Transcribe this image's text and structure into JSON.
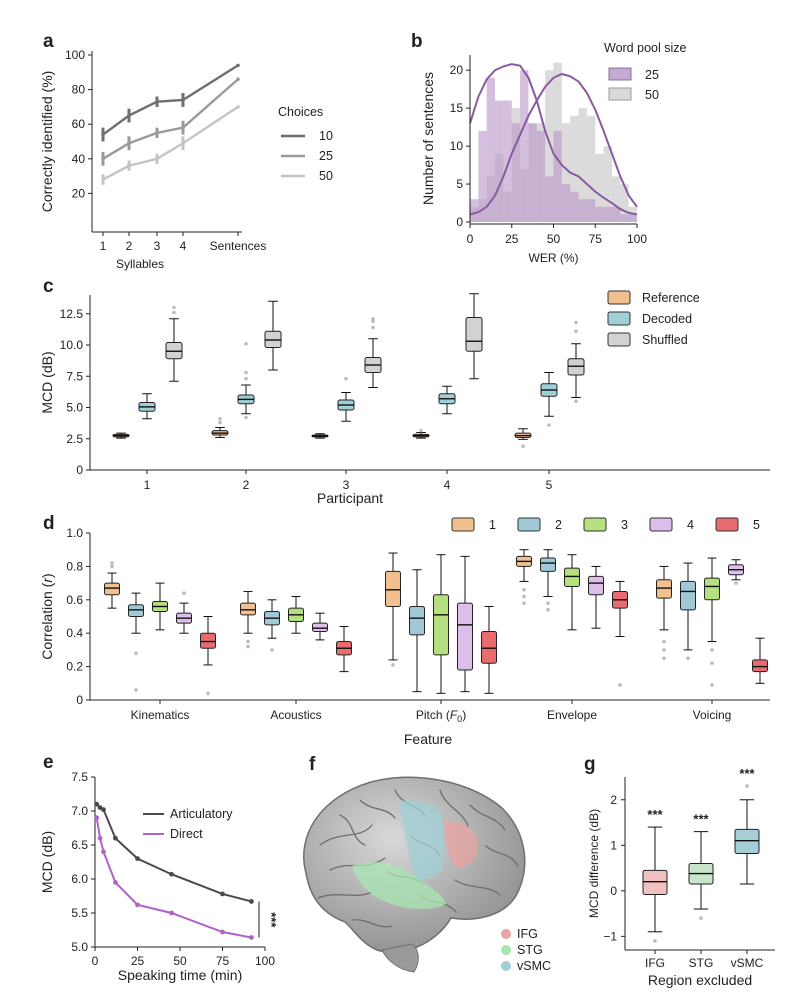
{
  "chart_data": [
    {
      "panel": "a",
      "type": "line",
      "x": [
        "1",
        "2",
        "3",
        "4",
        "Sentences"
      ],
      "xlabel": "Syllables",
      "ylabel": "Correctly identified (%)",
      "ylim": [
        0,
        100
      ],
      "yticks": [
        20,
        40,
        60,
        80,
        100
      ],
      "legend_title": "Choices",
      "legend_position": "right",
      "series": [
        {
          "name": "10",
          "color": "#6e6e6e",
          "values": [
            54,
            65,
            73,
            74,
            94
          ],
          "err": [
            4,
            4,
            3,
            4,
            0
          ]
        },
        {
          "name": "25",
          "color": "#9a9a9a",
          "values": [
            40,
            49,
            55,
            58,
            86
          ],
          "err": [
            4,
            4,
            3,
            4,
            0
          ]
        },
        {
          "name": "50",
          "color": "#c4c4c4",
          "values": [
            28,
            36,
            40,
            49,
            70
          ],
          "err": [
            3,
            3,
            3,
            4,
            0
          ]
        }
      ]
    },
    {
      "panel": "b",
      "type": "area",
      "xlabel": "WER (%)",
      "ylabel": "Number of sentences",
      "xlim": [
        0,
        100
      ],
      "ylim": [
        0,
        22
      ],
      "xticks": [
        0,
        25,
        50,
        75,
        100
      ],
      "yticks": [
        0,
        5,
        10,
        15,
        20
      ],
      "legend_title": "Word pool size",
      "legend_position": "top-right",
      "bin_edges": [
        0,
        5,
        10,
        15,
        20,
        25,
        30,
        35,
        40,
        45,
        50,
        55,
        60,
        65,
        70,
        75,
        80,
        85,
        90,
        95,
        100
      ],
      "series": [
        {
          "name": "25",
          "color": "#b795c9",
          "histogram": [
            3,
            12,
            19,
            16,
            16,
            13,
            20,
            13,
            12,
            6,
            12,
            5,
            4,
            3,
            3,
            2,
            2,
            2,
            1,
            1
          ],
          "curve_x": [
            0,
            5,
            10,
            15,
            20,
            25,
            30,
            35,
            40,
            45,
            50,
            55,
            60,
            65,
            70,
            75,
            80,
            85,
            90,
            95,
            100
          ],
          "curve_y": [
            13,
            16.5,
            18.8,
            20,
            20.5,
            20.8,
            20.6,
            19,
            16,
            12,
            9,
            7.5,
            6.5,
            6,
            5,
            4,
            3.2,
            2.5,
            1.7,
            1.2,
            1
          ]
        },
        {
          "name": "50",
          "color": "#cfcfcf",
          "histogram": [
            2,
            3,
            6,
            9,
            4,
            15,
            7,
            13,
            13,
            20,
            21,
            13,
            14,
            15,
            14,
            9,
            10,
            6,
            5,
            2
          ],
          "curve_x": [
            0,
            5,
            10,
            15,
            20,
            25,
            30,
            35,
            40,
            45,
            50,
            55,
            60,
            65,
            70,
            75,
            80,
            85,
            90,
            95,
            100
          ],
          "curve_y": [
            1,
            1.3,
            2,
            3.5,
            6,
            9,
            11.5,
            14,
            16,
            17.8,
            19,
            19.5,
            19.2,
            18.5,
            17,
            14.8,
            12,
            9,
            6,
            3.5,
            2
          ]
        }
      ]
    },
    {
      "panel": "c",
      "type": "box",
      "xlabel": "Participant",
      "ylabel": "MCD (dB)",
      "ylim": [
        0,
        14
      ],
      "yticks": [
        0,
        2.5,
        5.0,
        7.5,
        10.0,
        12.5
      ],
      "ytick_labels": [
        "0",
        "2.5",
        "5.0",
        "7.5",
        "10.0",
        "12.5"
      ],
      "categories": [
        "1",
        "2",
        "3",
        "4",
        "5"
      ],
      "legend_position": "top-right",
      "series": [
        {
          "name": "Reference",
          "color": "#f2bf8e",
          "boxes": [
            {
              "min": 2.55,
              "q1": 2.65,
              "median": 2.75,
              "q3": 2.85,
              "max": 2.95,
              "outliers": []
            },
            {
              "min": 2.6,
              "q1": 2.8,
              "median": 2.95,
              "q3": 3.15,
              "max": 3.4,
              "outliers": [
                3.8,
                4.1
              ]
            },
            {
              "min": 2.55,
              "q1": 2.65,
              "median": 2.72,
              "q3": 2.8,
              "max": 2.9,
              "outliers": []
            },
            {
              "min": 2.55,
              "q1": 2.65,
              "median": 2.75,
              "q3": 2.85,
              "max": 3.0,
              "outliers": [
                3.15
              ]
            },
            {
              "min": 2.45,
              "q1": 2.6,
              "median": 2.75,
              "q3": 2.95,
              "max": 3.3,
              "outliers": [
                1.9
              ]
            }
          ]
        },
        {
          "name": "Decoded",
          "color": "#9fcfd7",
          "boxes": [
            {
              "min": 4.1,
              "q1": 4.7,
              "median": 5.05,
              "q3": 5.4,
              "max": 6.1,
              "outliers": []
            },
            {
              "min": 4.5,
              "q1": 5.3,
              "median": 5.65,
              "q3": 6.0,
              "max": 6.8,
              "outliers": [
                4.2,
                7.3,
                7.8,
                10.1
              ]
            },
            {
              "min": 3.9,
              "q1": 4.8,
              "median": 5.2,
              "q3": 5.6,
              "max": 6.2,
              "outliers": [
                7.3
              ]
            },
            {
              "min": 4.5,
              "q1": 5.3,
              "median": 5.7,
              "q3": 6.1,
              "max": 6.7,
              "outliers": []
            },
            {
              "min": 4.3,
              "q1": 5.9,
              "median": 6.4,
              "q3": 6.9,
              "max": 7.8,
              "outliers": [
                3.6
              ]
            }
          ]
        },
        {
          "name": "Shuffled",
          "color": "#d2d2d2",
          "boxes": [
            {
              "min": 7.1,
              "q1": 8.9,
              "median": 9.5,
              "q3": 10.2,
              "max": 12.1,
              "outliers": [
                13.0,
                12.6
              ]
            },
            {
              "min": 8.0,
              "q1": 9.8,
              "median": 10.4,
              "q3": 11.1,
              "max": 13.5,
              "outliers": []
            },
            {
              "min": 6.6,
              "q1": 7.8,
              "median": 8.4,
              "q3": 9.0,
              "max": 10.5,
              "outliers": [
                11.4,
                11.9,
                12.1
              ]
            },
            {
              "min": 7.3,
              "q1": 9.5,
              "median": 10.3,
              "q3": 12.2,
              "max": 14.1,
              "outliers": []
            },
            {
              "min": 5.8,
              "q1": 7.6,
              "median": 8.3,
              "q3": 8.9,
              "max": 10.1,
              "outliers": [
                5.5,
                11.1,
                11.8
              ]
            }
          ]
        }
      ]
    },
    {
      "panel": "d",
      "type": "box",
      "xlabel": "Feature",
      "ylabel": "Correlation (r)",
      "ylabel_main": "Correlation (",
      "ylabel_var": "r",
      "ylabel_end": ")",
      "ylim": [
        0,
        1.0
      ],
      "yticks": [
        0,
        0.2,
        0.4,
        0.6,
        0.8,
        1.0
      ],
      "ytick_labels": [
        "0",
        "0.2",
        "0.4",
        "0.6",
        "0.8",
        "1.0"
      ],
      "categories": [
        "Kinematics",
        "Acoustics",
        "Pitch (F0)",
        "Envelope",
        "Voicing"
      ],
      "pitch_label": {
        "main": "Pitch (",
        "var": "F",
        "sub": "0",
        "end": ")"
      },
      "legend_position": "top-right",
      "series": [
        {
          "name": "1",
          "color": "#f2bf8e",
          "boxes": [
            {
              "min": 0.55,
              "q1": 0.63,
              "median": 0.67,
              "q3": 0.7,
              "max": 0.76,
              "outliers": [
                0.8,
                0.82
              ]
            },
            {
              "min": 0.4,
              "q1": 0.51,
              "median": 0.54,
              "q3": 0.58,
              "max": 0.65,
              "outliers": [
                0.35,
                0.32
              ]
            },
            {
              "min": 0.24,
              "q1": 0.56,
              "median": 0.66,
              "q3": 0.77,
              "max": 0.88,
              "outliers": [
                0.21
              ]
            },
            {
              "min": 0.71,
              "q1": 0.8,
              "median": 0.83,
              "q3": 0.86,
              "max": 0.9,
              "outliers": [
                0.66,
                0.62,
                0.58
              ]
            },
            {
              "min": 0.42,
              "q1": 0.61,
              "median": 0.67,
              "q3": 0.72,
              "max": 0.8,
              "outliers": [
                0.35,
                0.3,
                0.25
              ]
            }
          ]
        },
        {
          "name": "2",
          "color": "#9fc9d6",
          "boxes": [
            {
              "min": 0.4,
              "q1": 0.5,
              "median": 0.54,
              "q3": 0.57,
              "max": 0.64,
              "outliers": [
                0.28,
                0.06
              ]
            },
            {
              "min": 0.37,
              "q1": 0.45,
              "median": 0.49,
              "q3": 0.53,
              "max": 0.6,
              "outliers": [
                0.3
              ]
            },
            {
              "min": 0.05,
              "q1": 0.39,
              "median": 0.49,
              "q3": 0.56,
              "max": 0.78,
              "outliers": []
            },
            {
              "min": 0.62,
              "q1": 0.77,
              "median": 0.82,
              "q3": 0.85,
              "max": 0.9,
              "outliers": [
                0.58,
                0.54
              ]
            },
            {
              "min": 0.3,
              "q1": 0.54,
              "median": 0.65,
              "q3": 0.71,
              "max": 0.82,
              "outliers": [
                0.25
              ]
            }
          ]
        },
        {
          "name": "3",
          "color": "#b6e07f",
          "boxes": [
            {
              "min": 0.42,
              "q1": 0.53,
              "median": 0.56,
              "q3": 0.59,
              "max": 0.7,
              "outliers": []
            },
            {
              "min": 0.4,
              "q1": 0.47,
              "median": 0.51,
              "q3": 0.55,
              "max": 0.62,
              "outliers": []
            },
            {
              "min": 0.04,
              "q1": 0.27,
              "median": 0.51,
              "q3": 0.63,
              "max": 0.87,
              "outliers": []
            },
            {
              "min": 0.42,
              "q1": 0.68,
              "median": 0.74,
              "q3": 0.79,
              "max": 0.87,
              "outliers": []
            },
            {
              "min": 0.35,
              "q1": 0.6,
              "median": 0.68,
              "q3": 0.73,
              "max": 0.85,
              "outliers": [
                0.3,
                0.22,
                0.09
              ]
            }
          ]
        },
        {
          "name": "4",
          "color": "#ddbde9",
          "boxes": [
            {
              "min": 0.4,
              "q1": 0.46,
              "median": 0.49,
              "q3": 0.52,
              "max": 0.58,
              "outliers": [
                0.64
              ]
            },
            {
              "min": 0.36,
              "q1": 0.41,
              "median": 0.43,
              "q3": 0.46,
              "max": 0.52,
              "outliers": []
            },
            {
              "min": 0.05,
              "q1": 0.18,
              "median": 0.45,
              "q3": 0.58,
              "max": 0.86,
              "outliers": []
            },
            {
              "min": 0.43,
              "q1": 0.63,
              "median": 0.7,
              "q3": 0.74,
              "max": 0.8,
              "outliers": []
            },
            {
              "min": 0.72,
              "q1": 0.75,
              "median": 0.78,
              "q3": 0.81,
              "max": 0.84,
              "outliers": [
                0.7
              ]
            }
          ]
        },
        {
          "name": "5",
          "color": "#e76b6f",
          "boxes": [
            {
              "min": 0.21,
              "q1": 0.31,
              "median": 0.35,
              "q3": 0.4,
              "max": 0.5,
              "outliers": [
                0.04
              ]
            },
            {
              "min": 0.17,
              "q1": 0.27,
              "median": 0.31,
              "q3": 0.35,
              "max": 0.44,
              "outliers": []
            },
            {
              "min": 0.04,
              "q1": 0.22,
              "median": 0.31,
              "q3": 0.41,
              "max": 0.56,
              "outliers": []
            },
            {
              "min": 0.38,
              "q1": 0.55,
              "median": 0.6,
              "q3": 0.65,
              "max": 0.71,
              "outliers": [
                0.09
              ]
            },
            {
              "min": 0.1,
              "q1": 0.17,
              "median": 0.2,
              "q3": 0.24,
              "max": 0.37,
              "outliers": []
            }
          ]
        }
      ]
    },
    {
      "panel": "e",
      "type": "line",
      "xlabel": "Speaking time (min)",
      "ylabel": "MCD (dB)",
      "xlim": [
        0,
        100
      ],
      "ylim": [
        5.0,
        7.5
      ],
      "xticks": [
        0,
        25,
        50,
        75,
        100
      ],
      "yticks": [
        5.0,
        5.5,
        6.0,
        6.5,
        7.0,
        7.5
      ],
      "ytick_labels": [
        "5.0",
        "5.5",
        "6.0",
        "6.5",
        "7.0",
        "7.5"
      ],
      "significance": "***",
      "legend_position": "top-right",
      "series": [
        {
          "name": "Articulatory",
          "color": "#4a4a4a",
          "x": [
            1,
            3,
            5,
            12,
            25,
            45,
            75,
            92
          ],
          "y": [
            7.1,
            7.05,
            7.02,
            6.6,
            6.3,
            6.07,
            5.78,
            5.67
          ]
        },
        {
          "name": "Direct",
          "color": "#b062c8",
          "x": [
            1,
            3,
            5,
            12,
            25,
            45,
            75,
            92
          ],
          "y": [
            6.9,
            6.6,
            6.4,
            5.95,
            5.62,
            5.5,
            5.22,
            5.14
          ]
        }
      ]
    },
    {
      "panel": "g",
      "type": "box",
      "xlabel": "Region excluded",
      "ylabel": "MCD difference (dB)",
      "ylim": [
        -1.3,
        2.5
      ],
      "yticks": [
        -1,
        0,
        1,
        2
      ],
      "ytick_labels": [
        "−1",
        "0",
        "1",
        "2"
      ],
      "categories": [
        "IFG",
        "STG",
        "vSMC"
      ],
      "significance": [
        "***",
        "***",
        "***"
      ],
      "boxes": [
        {
          "color": "#f0c1c0",
          "min": -0.9,
          "q1": -0.08,
          "median": 0.2,
          "q3": 0.45,
          "max": 1.4,
          "outliers": [
            -1.1
          ]
        },
        {
          "color": "#c9e6cb",
          "min": -0.4,
          "q1": 0.15,
          "median": 0.38,
          "q3": 0.6,
          "max": 1.3,
          "outliers": [
            -0.6
          ]
        },
        {
          "color": "#a5cfd6",
          "min": 0.15,
          "q1": 0.82,
          "median": 1.1,
          "q3": 1.35,
          "max": 2.0,
          "outliers": [
            2.3
          ]
        }
      ]
    }
  ],
  "panel_f": {
    "label": "f",
    "legend": [
      {
        "name": "IFG",
        "color": "#eaa3a3"
      },
      {
        "name": "STG",
        "color": "#a8e6b0"
      },
      {
        "name": "vSMC",
        "color": "#9ecfd6"
      }
    ]
  },
  "panel_labels": [
    "a",
    "b",
    "c",
    "d",
    "e",
    "f",
    "g"
  ]
}
